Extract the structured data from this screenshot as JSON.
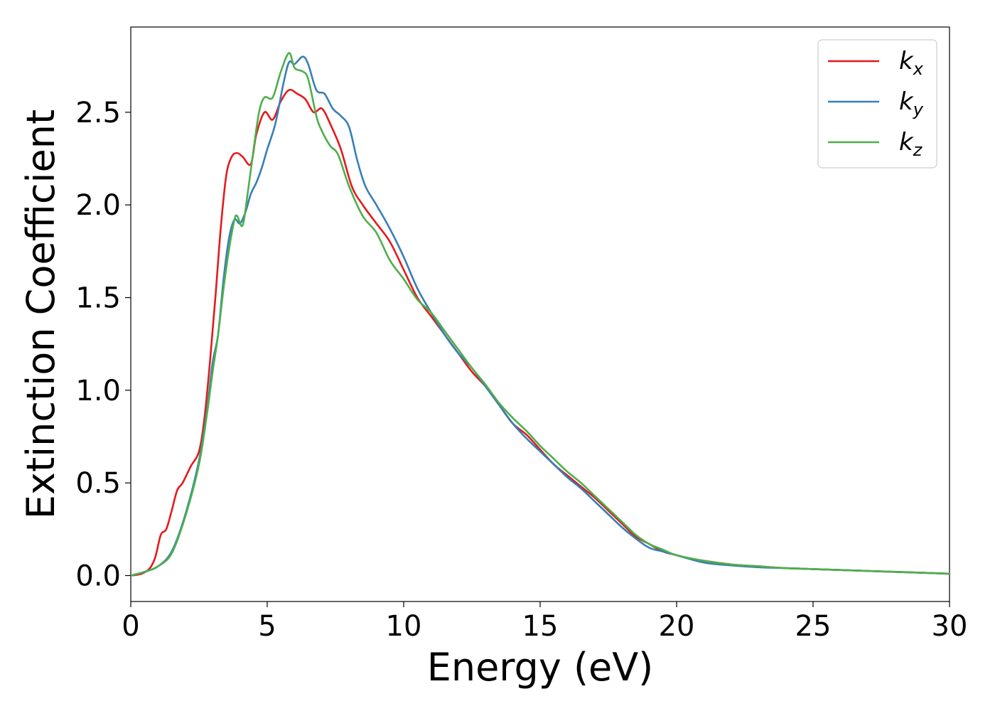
{
  "chart_data": {
    "type": "line",
    "title": "",
    "xlabel": "Energy (eV)",
    "ylabel": "Extinction Coefficient",
    "xlim": [
      0,
      30
    ],
    "ylim": [
      -0.14,
      2.96
    ],
    "xticks": [
      0,
      5,
      10,
      15,
      20,
      25,
      30
    ],
    "xtick_labels": [
      "0",
      "5",
      "10",
      "15",
      "20",
      "25",
      "30"
    ],
    "yticks": [
      0.0,
      0.5,
      1.0,
      1.5,
      2.0,
      2.5
    ],
    "ytick_labels": [
      "0.0",
      "0.5",
      "1.0",
      "1.5",
      "2.0",
      "2.5"
    ],
    "grid": false,
    "legend_position": "top-right",
    "series": [
      {
        "name": "k_x",
        "label_base": "k",
        "label_sub": "x",
        "color": "#e41a1c",
        "points": [
          [
            0,
            0
          ],
          [
            0.4,
            0.01
          ],
          [
            0.7,
            0.04
          ],
          [
            0.9,
            0.1
          ],
          [
            1.1,
            0.22
          ],
          [
            1.3,
            0.25
          ],
          [
            1.5,
            0.35
          ],
          [
            1.7,
            0.46
          ],
          [
            1.9,
            0.5
          ],
          [
            2.2,
            0.59
          ],
          [
            2.5,
            0.67
          ],
          [
            2.7,
            0.85
          ],
          [
            2.9,
            1.15
          ],
          [
            3.1,
            1.5
          ],
          [
            3.3,
            1.88
          ],
          [
            3.5,
            2.16
          ],
          [
            3.7,
            2.26
          ],
          [
            3.9,
            2.28
          ],
          [
            4.1,
            2.26
          ],
          [
            4.4,
            2.22
          ],
          [
            4.6,
            2.38
          ],
          [
            4.9,
            2.5
          ],
          [
            5.2,
            2.46
          ],
          [
            5.5,
            2.56
          ],
          [
            5.8,
            2.62
          ],
          [
            6.1,
            2.6
          ],
          [
            6.4,
            2.57
          ],
          [
            6.7,
            2.5
          ],
          [
            7.0,
            2.52
          ],
          [
            7.3,
            2.44
          ],
          [
            7.7,
            2.3
          ],
          [
            8.1,
            2.1
          ],
          [
            8.5,
            2.0
          ],
          [
            9.0,
            1.9
          ],
          [
            9.5,
            1.8
          ],
          [
            10.0,
            1.65
          ],
          [
            10.5,
            1.5
          ],
          [
            11.0,
            1.4
          ],
          [
            11.5,
            1.3
          ],
          [
            12.0,
            1.2
          ],
          [
            12.5,
            1.1
          ],
          [
            13.0,
            1.02
          ],
          [
            13.5,
            0.92
          ],
          [
            14.0,
            0.82
          ],
          [
            14.5,
            0.76
          ],
          [
            15.0,
            0.68
          ],
          [
            15.5,
            0.6
          ],
          [
            16.0,
            0.54
          ],
          [
            16.5,
            0.48
          ],
          [
            17.0,
            0.42
          ],
          [
            17.5,
            0.35
          ],
          [
            18.0,
            0.28
          ],
          [
            18.5,
            0.21
          ],
          [
            19.0,
            0.17
          ],
          [
            19.5,
            0.13
          ],
          [
            20.0,
            0.11
          ],
          [
            20.5,
            0.09
          ],
          [
            21.0,
            0.08
          ],
          [
            22.0,
            0.06
          ],
          [
            23.0,
            0.05
          ],
          [
            24.0,
            0.04
          ],
          [
            25.0,
            0.035
          ],
          [
            26.0,
            0.03
          ],
          [
            27.0,
            0.025
          ],
          [
            28.0,
            0.02
          ],
          [
            29.0,
            0.015
          ],
          [
            30.0,
            0.01
          ]
        ]
      },
      {
        "name": "k_y",
        "label_base": "k",
        "label_sub": "y",
        "color": "#377eb8",
        "points": [
          [
            0,
            0
          ],
          [
            0.5,
            0.02
          ],
          [
            1.0,
            0.05
          ],
          [
            1.5,
            0.13
          ],
          [
            2.0,
            0.33
          ],
          [
            2.5,
            0.62
          ],
          [
            2.8,
            0.9
          ],
          [
            3.0,
            1.15
          ],
          [
            3.2,
            1.3
          ],
          [
            3.4,
            1.6
          ],
          [
            3.6,
            1.82
          ],
          [
            3.8,
            1.92
          ],
          [
            4.0,
            1.9
          ],
          [
            4.2,
            1.96
          ],
          [
            4.4,
            2.06
          ],
          [
            4.6,
            2.12
          ],
          [
            4.8,
            2.2
          ],
          [
            5.0,
            2.3
          ],
          [
            5.3,
            2.44
          ],
          [
            5.6,
            2.66
          ],
          [
            5.8,
            2.77
          ],
          [
            6.0,
            2.76
          ],
          [
            6.3,
            2.8
          ],
          [
            6.5,
            2.76
          ],
          [
            6.8,
            2.62
          ],
          [
            7.1,
            2.6
          ],
          [
            7.4,
            2.52
          ],
          [
            7.7,
            2.48
          ],
          [
            8.0,
            2.42
          ],
          [
            8.3,
            2.24
          ],
          [
            8.6,
            2.1
          ],
          [
            9.0,
            2.0
          ],
          [
            9.5,
            1.87
          ],
          [
            10.0,
            1.72
          ],
          [
            10.5,
            1.55
          ],
          [
            11.0,
            1.42
          ],
          [
            11.5,
            1.3
          ],
          [
            12.0,
            1.2
          ],
          [
            12.5,
            1.12
          ],
          [
            13.0,
            1.02
          ],
          [
            13.5,
            0.92
          ],
          [
            14.0,
            0.82
          ],
          [
            14.5,
            0.74
          ],
          [
            15.0,
            0.67
          ],
          [
            15.5,
            0.6
          ],
          [
            16.0,
            0.53
          ],
          [
            16.5,
            0.47
          ],
          [
            17.0,
            0.4
          ],
          [
            17.5,
            0.33
          ],
          [
            18.0,
            0.26
          ],
          [
            18.5,
            0.2
          ],
          [
            19.0,
            0.15
          ],
          [
            19.5,
            0.13
          ],
          [
            20.0,
            0.11
          ],
          [
            21.0,
            0.07
          ],
          [
            22.0,
            0.055
          ],
          [
            23.0,
            0.045
          ],
          [
            24.0,
            0.04
          ],
          [
            25.0,
            0.035
          ],
          [
            26.0,
            0.03
          ],
          [
            27.0,
            0.025
          ],
          [
            28.0,
            0.02
          ],
          [
            29.0,
            0.015
          ],
          [
            30.0,
            0.01
          ]
        ]
      },
      {
        "name": "k_z",
        "label_base": "k",
        "label_sub": "z",
        "color": "#4daf4a",
        "points": [
          [
            0,
            0
          ],
          [
            0.5,
            0.02
          ],
          [
            1.0,
            0.05
          ],
          [
            1.5,
            0.12
          ],
          [
            2.0,
            0.32
          ],
          [
            2.5,
            0.6
          ],
          [
            2.8,
            0.88
          ],
          [
            3.0,
            1.1
          ],
          [
            3.2,
            1.3
          ],
          [
            3.4,
            1.55
          ],
          [
            3.6,
            1.76
          ],
          [
            3.8,
            1.92
          ],
          [
            3.9,
            1.94
          ],
          [
            4.1,
            1.89
          ],
          [
            4.3,
            2.08
          ],
          [
            4.5,
            2.3
          ],
          [
            4.7,
            2.5
          ],
          [
            4.9,
            2.58
          ],
          [
            5.2,
            2.58
          ],
          [
            5.5,
            2.72
          ],
          [
            5.8,
            2.82
          ],
          [
            6.0,
            2.74
          ],
          [
            6.3,
            2.72
          ],
          [
            6.5,
            2.68
          ],
          [
            6.8,
            2.48
          ],
          [
            7.0,
            2.4
          ],
          [
            7.3,
            2.32
          ],
          [
            7.6,
            2.27
          ],
          [
            8.0,
            2.1
          ],
          [
            8.5,
            1.94
          ],
          [
            9.0,
            1.85
          ],
          [
            9.5,
            1.7
          ],
          [
            10.0,
            1.6
          ],
          [
            10.5,
            1.49
          ],
          [
            11.0,
            1.42
          ],
          [
            11.5,
            1.32
          ],
          [
            12.0,
            1.22
          ],
          [
            12.5,
            1.12
          ],
          [
            13.0,
            1.03
          ],
          [
            13.5,
            0.93
          ],
          [
            14.0,
            0.85
          ],
          [
            14.5,
            0.78
          ],
          [
            15.0,
            0.7
          ],
          [
            15.5,
            0.63
          ],
          [
            16.0,
            0.56
          ],
          [
            16.5,
            0.5
          ],
          [
            17.0,
            0.43
          ],
          [
            17.5,
            0.36
          ],
          [
            18.0,
            0.29
          ],
          [
            18.5,
            0.22
          ],
          [
            19.0,
            0.17
          ],
          [
            19.5,
            0.14
          ],
          [
            20.0,
            0.11
          ],
          [
            21.0,
            0.08
          ],
          [
            22.0,
            0.06
          ],
          [
            23.0,
            0.05
          ],
          [
            24.0,
            0.04
          ],
          [
            25.0,
            0.035
          ],
          [
            26.0,
            0.03
          ],
          [
            27.0,
            0.025
          ],
          [
            28.0,
            0.02
          ],
          [
            29.0,
            0.015
          ],
          [
            30.0,
            0.01
          ]
        ]
      }
    ]
  }
}
